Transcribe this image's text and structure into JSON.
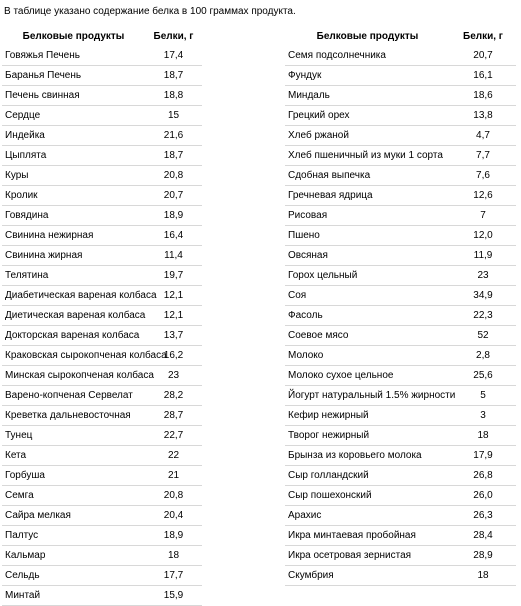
{
  "title": "В таблице указано содержание белка в 100 граммах продукта.",
  "table": {
    "header": [
      "Белковые продукты",
      "Белки, г",
      "Белковые продукты",
      "Белки, г"
    ],
    "rows": [
      [
        "Говяжья Печень",
        "17,4",
        "Семя подсолнечника",
        "20,7"
      ],
      [
        "Баранья Печень",
        "18,7",
        "Фундук",
        "16,1"
      ],
      [
        "Печень свинная",
        "18,8",
        "Миндаль",
        "18,6"
      ],
      [
        "Сердце",
        "15",
        "Грецкий орех",
        "13,8"
      ],
      [
        "Индейка",
        "21,6",
        "Хлеб ржаной",
        "4,7"
      ],
      [
        "Цыплята",
        "18,7",
        "Хлеб пшеничный из муки 1 сорта",
        "7,7"
      ],
      [
        "Куры",
        "20,8",
        "Сдобная выпечка",
        "7,6"
      ],
      [
        "Кролик",
        "20,7",
        "Гречневая ядрица",
        "12,6"
      ],
      [
        "Говядина",
        "18,9",
        "Рисовая",
        "7"
      ],
      [
        "Свинина нежирная",
        "16,4",
        "Пшено",
        "12,0"
      ],
      [
        "Свинина жирная",
        "11,4",
        "Овсяная",
        "11,9"
      ],
      [
        "Телятина",
        "19,7",
        "Горох цельный",
        "23"
      ],
      [
        "Диабетическая вареная колбаса",
        "12,1",
        "Соя",
        "34,9"
      ],
      [
        "Диетическая вареная колбаса",
        "12,1",
        "Фасоль",
        "22,3"
      ],
      [
        "Докторская вареная колбаса",
        "13,7",
        "Соевое мясо",
        "52"
      ],
      [
        "Краковская сырокопченая колбаса",
        "16,2",
        "Молоко",
        "2,8"
      ],
      [
        "Минская сырокопченая колбаса",
        "23",
        "Молоко сухое цельное",
        "25,6"
      ],
      [
        "Варено-копченая Сервелат",
        "28,2",
        "Йогурт натуральный 1.5% жирности",
        "5"
      ],
      [
        "Креветка дальневосточная",
        "28,7",
        "Кефир нежирный",
        "3"
      ],
      [
        "Тунец",
        "22,7",
        "Творог нежирный",
        "18"
      ],
      [
        "Кета",
        "22",
        "Брынза из коровьего молока",
        "17,9"
      ],
      [
        "Горбуша",
        "21",
        "Сыр голландский",
        "26,8"
      ],
      [
        "Семга",
        "20,8",
        "Сыр пошехонский",
        "26,0"
      ],
      [
        "Сайра мелкая",
        "20,4",
        "Арахис",
        "26,3"
      ],
      [
        "Палтус",
        "18,9",
        "Икра минтаевая пробойная",
        "28,4"
      ],
      [
        "Кальмар",
        "18",
        "Икра осетровая зернистая",
        "28,9"
      ],
      [
        "Сельдь",
        "17,7",
        "Скумбрия",
        "18"
      ],
      [
        "Минтай",
        "15,9"
      ]
    ]
  }
}
